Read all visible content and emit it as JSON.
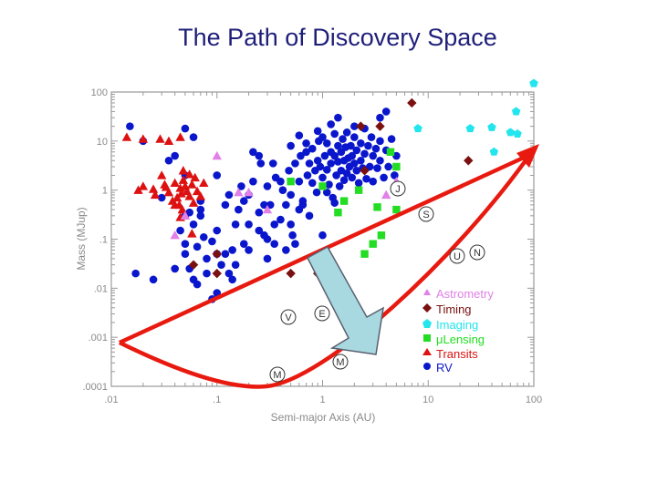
{
  "slide": {
    "title": "The Path of Discovery Space"
  },
  "colors": {
    "rv": "#0a16cc",
    "transits": "#dd1111",
    "lensing": "#22dd22",
    "imaging": "#22e5ee",
    "timing": "#7a1010",
    "astrometry": "#e080e8",
    "path": "#e81a10",
    "arrow_fill": "#a8d8e0",
    "arrow_stroke": "#5a6070"
  },
  "chart_data": {
    "type": "scatter",
    "xlabel": "Semi-major Axis (AU)",
    "ylabel": "Mass (MJup)",
    "xscale": "log",
    "yscale": "log",
    "xlim": [
      0.01,
      100
    ],
    "ylim": [
      0.0001,
      100
    ],
    "x_ticks": [
      ".01",
      ".1",
      "1",
      "10",
      "100"
    ],
    "y_ticks": [
      ".0001",
      ".001",
      ".01",
      ".1",
      "1",
      "10",
      "100"
    ],
    "legend_position": "lower-right",
    "series": [
      {
        "name": "Astrometry",
        "marker": "triangle",
        "color_key": "astrometry",
        "points": [
          [
            0.1,
            5
          ],
          [
            0.16,
            0.9
          ],
          [
            0.04,
            0.12
          ],
          [
            0.05,
            0.3
          ],
          [
            5,
            1.5
          ],
          [
            4,
            0.8
          ],
          [
            0.3,
            0.4
          ],
          [
            0.2,
            0.9
          ]
        ]
      },
      {
        "name": "Timing",
        "marker": "diamond",
        "color_key": "timing",
        "points": [
          [
            0.1,
            0.02
          ],
          [
            0.06,
            0.03
          ],
          [
            3.5,
            20
          ],
          [
            7,
            60
          ],
          [
            24,
            4
          ],
          [
            0.5,
            0.02
          ],
          [
            0.9,
            0.02
          ],
          [
            2.3,
            20
          ],
          [
            2.5,
            2.5
          ],
          [
            0.1,
            0.05
          ]
        ]
      },
      {
        "name": "Imaging",
        "marker": "pentagon",
        "color_key": "imaging",
        "points": [
          [
            100,
            150
          ],
          [
            8,
            18
          ],
          [
            25,
            18
          ],
          [
            40,
            19
          ],
          [
            42,
            6
          ],
          [
            60,
            15
          ],
          [
            68,
            40
          ],
          [
            70,
            14
          ]
        ]
      },
      {
        "name": "μLensing",
        "marker": "square",
        "color_key": "lensing",
        "points": [
          [
            5,
            0.4
          ],
          [
            3.3,
            0.45
          ],
          [
            4.4,
            6
          ],
          [
            5,
            3
          ],
          [
            1.4,
            0.35
          ],
          [
            1,
            1.2
          ],
          [
            2.2,
            1
          ],
          [
            3,
            0.08
          ],
          [
            3.6,
            0.12
          ],
          [
            2.5,
            0.05
          ],
          [
            0.5,
            1.5
          ],
          [
            1.6,
            0.6
          ]
        ]
      },
      {
        "name": "Transits",
        "marker": "triangle",
        "color_key": "transits",
        "points": [
          [
            0.014,
            12
          ],
          [
            0.02,
            11
          ],
          [
            0.029,
            11
          ],
          [
            0.035,
            10
          ],
          [
            0.045,
            12
          ],
          [
            0.018,
            1
          ],
          [
            0.025,
            1.05
          ],
          [
            0.032,
            1.3
          ],
          [
            0.035,
            0.9
          ],
          [
            0.038,
            0.6
          ],
          [
            0.04,
            1.4
          ],
          [
            0.042,
            0.7
          ],
          [
            0.044,
            0.5
          ],
          [
            0.045,
            1.1
          ],
          [
            0.046,
            0.85
          ],
          [
            0.047,
            0.4
          ],
          [
            0.048,
            1.6
          ],
          [
            0.05,
            1.2
          ],
          [
            0.052,
            0.95
          ],
          [
            0.055,
            0.75
          ],
          [
            0.058,
            1.3
          ],
          [
            0.06,
            0.55
          ],
          [
            0.062,
            1.8
          ],
          [
            0.065,
            0.95
          ],
          [
            0.07,
            0.75
          ],
          [
            0.075,
            1.4
          ],
          [
            0.045,
            0.28
          ],
          [
            0.05,
            0.3
          ],
          [
            0.058,
            0.13
          ],
          [
            0.04,
            0.5
          ],
          [
            0.055,
            2.1
          ],
          [
            0.048,
            2.5
          ],
          [
            0.02,
            1.2
          ],
          [
            0.03,
            2
          ],
          [
            0.033,
            1.15
          ],
          [
            0.026,
            0.8
          ]
        ]
      },
      {
        "name": "RV",
        "marker": "circle",
        "color_key": "rv",
        "points": [
          [
            0.015,
            20
          ],
          [
            0.017,
            0.02
          ],
          [
            0.025,
            0.015
          ],
          [
            0.02,
            10
          ],
          [
            0.035,
            4
          ],
          [
            0.04,
            5
          ],
          [
            0.05,
            2
          ],
          [
            0.03,
            0.7
          ],
          [
            0.05,
            18
          ],
          [
            0.06,
            12
          ],
          [
            0.05,
            0.08
          ],
          [
            0.04,
            0.025
          ],
          [
            0.07,
            0.3
          ],
          [
            0.1,
            2
          ],
          [
            0.07,
            0.6
          ],
          [
            0.06,
            0.015
          ],
          [
            0.12,
            0.5
          ],
          [
            0.1,
            0.15
          ],
          [
            0.05,
            0.3
          ],
          [
            0.05,
            0.05
          ],
          [
            0.08,
            0.02
          ],
          [
            0.12,
            0.05
          ],
          [
            0.13,
            0.02
          ],
          [
            0.15,
            0.03
          ],
          [
            0.1,
            0.008
          ],
          [
            0.055,
            0.025
          ],
          [
            0.065,
            0.012
          ],
          [
            0.09,
            0.006
          ],
          [
            0.2,
            0.2
          ],
          [
            0.08,
            0.04
          ],
          [
            0.15,
            0.2
          ],
          [
            0.18,
            0.6
          ],
          [
            0.07,
            0.4
          ],
          [
            0.1,
            0.05
          ],
          [
            0.11,
            0.03
          ],
          [
            0.14,
            0.015
          ],
          [
            0.065,
            0.07
          ],
          [
            0.045,
            0.15
          ],
          [
            0.055,
            0.35
          ],
          [
            0.075,
            0.11
          ],
          [
            0.25,
            0.15
          ],
          [
            0.3,
            0.04
          ],
          [
            0.35,
            0.08
          ],
          [
            0.2,
            0.06
          ],
          [
            0.09,
            0.09
          ],
          [
            0.06,
            0.2
          ],
          [
            0.13,
            0.8
          ],
          [
            0.17,
            1.2
          ],
          [
            0.2,
            0.8
          ],
          [
            0.22,
            1.5
          ],
          [
            0.26,
            3.5
          ],
          [
            0.3,
            1.2
          ],
          [
            0.32,
            0.5
          ],
          [
            0.34,
            3.5
          ],
          [
            0.36,
            1.8
          ],
          [
            0.4,
            0.25
          ],
          [
            0.42,
            1
          ],
          [
            0.48,
            2.5
          ],
          [
            0.5,
            0.8
          ],
          [
            0.52,
            0.12
          ],
          [
            0.55,
            3.5
          ],
          [
            0.6,
            1.5
          ],
          [
            0.62,
            5
          ],
          [
            0.65,
            0.6
          ],
          [
            0.7,
            6
          ],
          [
            0.72,
            2
          ],
          [
            0.75,
            0.3
          ],
          [
            0.8,
            7
          ],
          [
            0.85,
            2.5
          ],
          [
            0.88,
            0.9
          ],
          [
            0.9,
            4
          ],
          [
            0.92,
            10
          ],
          [
            0.95,
            3
          ],
          [
            1,
            1.8
          ],
          [
            1,
            12
          ],
          [
            1.05,
            5
          ],
          [
            1.1,
            2.6
          ],
          [
            1.1,
            9
          ],
          [
            1.15,
            1.3
          ],
          [
            1.2,
            6
          ],
          [
            1.2,
            3.5
          ],
          [
            1.25,
            0.7
          ],
          [
            1.3,
            14
          ],
          [
            1.3,
            5
          ],
          [
            1.35,
            2
          ],
          [
            1.4,
            8
          ],
          [
            1.4,
            3.8
          ],
          [
            1.45,
            1.2
          ],
          [
            1.5,
            6
          ],
          [
            1.5,
            2.5
          ],
          [
            1.55,
            11
          ],
          [
            1.6,
            4
          ],
          [
            1.6,
            1.6
          ],
          [
            1.65,
            7.5
          ],
          [
            1.7,
            2.2
          ],
          [
            1.7,
            15
          ],
          [
            1.75,
            4.5
          ],
          [
            1.8,
            3
          ],
          [
            1.85,
            8
          ],
          [
            1.9,
            1.8
          ],
          [
            1.9,
            5
          ],
          [
            2,
            3.5
          ],
          [
            2,
            12
          ],
          [
            2.1,
            2.5
          ],
          [
            2.1,
            6.5
          ],
          [
            2.2,
            1.4
          ],
          [
            2.3,
            9
          ],
          [
            2.3,
            4
          ],
          [
            2.4,
            2.8
          ],
          [
            2.5,
            18
          ],
          [
            2.5,
            5.5
          ],
          [
            2.6,
            1.7
          ],
          [
            2.7,
            8
          ],
          [
            2.8,
            3
          ],
          [
            2.9,
            12
          ],
          [
            3,
            5
          ],
          [
            3,
            1.5
          ],
          [
            3.2,
            7
          ],
          [
            3.3,
            2.8
          ],
          [
            3.5,
            10
          ],
          [
            3.5,
            4
          ],
          [
            3.8,
            1.8
          ],
          [
            4,
            6.5
          ],
          [
            4.2,
            3
          ],
          [
            4.5,
            11
          ],
          [
            4.8,
            2
          ],
          [
            5,
            5
          ],
          [
            2,
            20
          ],
          [
            3.5,
            30
          ],
          [
            4,
            40
          ],
          [
            1.4,
            30
          ],
          [
            1.2,
            22
          ],
          [
            0.9,
            16
          ],
          [
            0.7,
            9
          ],
          [
            0.75,
            3.5
          ],
          [
            0.6,
            0.4
          ],
          [
            0.55,
            0.08
          ],
          [
            0.45,
            0.06
          ],
          [
            0.5,
            0.2
          ],
          [
            1,
            0.12
          ],
          [
            1.3,
            0.55
          ],
          [
            1.1,
            0.9
          ],
          [
            0.8,
            1.4
          ],
          [
            0.35,
            0.2
          ],
          [
            0.25,
            0.35
          ],
          [
            0.3,
            0.1
          ],
          [
            0.45,
            0.5
          ],
          [
            0.25,
            5
          ],
          [
            0.4,
            1.5
          ],
          [
            0.5,
            8
          ],
          [
            0.6,
            13
          ],
          [
            0.65,
            0.5
          ],
          [
            0.22,
            6
          ],
          [
            0.16,
            0.4
          ],
          [
            0.14,
            0.06
          ],
          [
            0.28,
            0.12
          ],
          [
            0.28,
            0.5
          ],
          [
            0.18,
            0.08
          ]
        ]
      }
    ],
    "annotations": [
      "J",
      "S",
      "U",
      "N",
      "V",
      "E",
      "M",
      "M"
    ],
    "legend": [
      "Astrometry",
      "Timing",
      "Imaging",
      "μLensing",
      "Transits",
      "RV"
    ]
  }
}
